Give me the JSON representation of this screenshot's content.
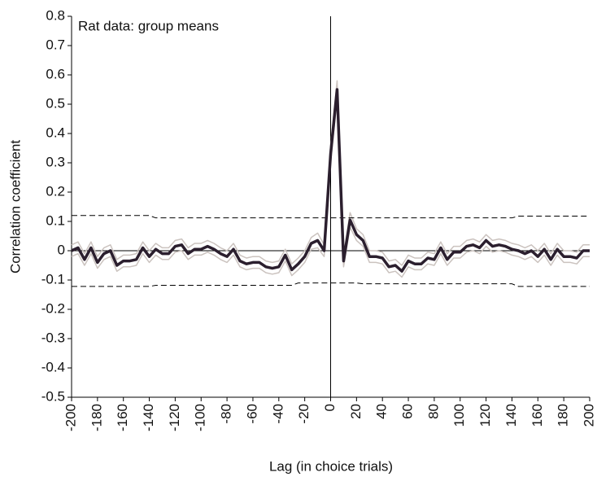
{
  "chart_data": {
    "type": "line",
    "annotation": "Rat data: group means",
    "xlabel": "Lag (in choice trials)",
    "ylabel": "Correlation coefficient",
    "xlim": [
      -200,
      200
    ],
    "ylim": [
      -0.5,
      0.8
    ],
    "xticks": [
      -200,
      -180,
      -160,
      -140,
      -120,
      -100,
      -80,
      -60,
      -40,
      -20,
      0,
      20,
      40,
      60,
      80,
      100,
      120,
      140,
      160,
      180,
      200
    ],
    "yticks": [
      0.8,
      0.7,
      0.6,
      0.5,
      0.4,
      0.3,
      0.2,
      0.1,
      0,
      -0.1,
      -0.2,
      -0.3,
      -0.4,
      -0.5
    ],
    "x": [
      -200,
      -195,
      -190,
      -185,
      -180,
      -175,
      -170,
      -165,
      -160,
      -155,
      -150,
      -145,
      -140,
      -135,
      -130,
      -125,
      -120,
      -115,
      -110,
      -105,
      -100,
      -95,
      -90,
      -85,
      -80,
      -75,
      -70,
      -65,
      -60,
      -55,
      -50,
      -45,
      -40,
      -35,
      -30,
      -25,
      -20,
      -15,
      -10,
      -5,
      0,
      5,
      10,
      15,
      20,
      25,
      30,
      35,
      40,
      45,
      50,
      55,
      60,
      65,
      70,
      75,
      80,
      85,
      90,
      95,
      100,
      105,
      110,
      115,
      120,
      125,
      130,
      135,
      140,
      145,
      150,
      155,
      160,
      165,
      170,
      175,
      180,
      185,
      190,
      195,
      200
    ],
    "series": [
      {
        "color": "#cbc3bf",
        "width": 1.5,
        "values": [
          0.02,
          0.03,
          -0.01,
          0.03,
          -0.02,
          0.01,
          0.02,
          -0.03,
          -0.015,
          -0.015,
          -0.01,
          0.03,
          0,
          0.025,
          0.01,
          0.01,
          0.035,
          0.04,
          0.01,
          0.025,
          0.025,
          0.035,
          0.025,
          0.01,
          0,
          0.025,
          -0.015,
          -0.025,
          -0.02,
          -0.02,
          -0.035,
          -0.04,
          -0.035,
          0.005,
          -0.045,
          -0.025,
          0,
          0.045,
          0.06,
          0.02,
          0.36,
          0.58,
          -0.015,
          0.13,
          0.075,
          0.055,
          0,
          0,
          -0.005,
          -0.035,
          -0.03,
          -0.05,
          -0.015,
          -0.025,
          -0.025,
          -0.005,
          -0.01,
          0.03,
          -0.01,
          0.015,
          0.015,
          0.035,
          0.04,
          0.03,
          0.055,
          0.035,
          0.04,
          0.035,
          0.025,
          0.02,
          0.01,
          0.02,
          0,
          0.025,
          -0.01,
          0.025,
          0,
          0,
          -0.005,
          0.02,
          0.02
        ]
      },
      {
        "color": "#cbc3bf",
        "width": 1.5,
        "values": [
          -0.02,
          -0.01,
          -0.05,
          -0.01,
          -0.06,
          -0.03,
          -0.02,
          -0.07,
          -0.055,
          -0.055,
          -0.05,
          -0.01,
          -0.04,
          -0.015,
          -0.03,
          -0.03,
          -0.005,
          0,
          -0.03,
          -0.015,
          -0.015,
          -0.005,
          -0.015,
          -0.03,
          -0.04,
          -0.015,
          -0.055,
          -0.065,
          -0.06,
          -0.06,
          -0.075,
          -0.08,
          -0.075,
          -0.035,
          -0.085,
          -0.065,
          -0.04,
          0.005,
          0.01,
          -0.02,
          0.3,
          0.52,
          -0.055,
          0.08,
          0.035,
          0.015,
          -0.04,
          -0.04,
          -0.045,
          -0.075,
          -0.07,
          -0.09,
          -0.055,
          -0.065,
          -0.065,
          -0.045,
          -0.05,
          -0.01,
          -0.05,
          -0.025,
          -0.025,
          -0.005,
          0,
          -0.01,
          0.015,
          -0.005,
          0,
          -0.005,
          -0.015,
          -0.02,
          -0.03,
          -0.02,
          -0.04,
          -0.015,
          -0.05,
          -0.015,
          -0.04,
          -0.04,
          -0.045,
          -0.02,
          -0.02
        ]
      },
      {
        "color": "#000000",
        "width": 1,
        "dashed": true,
        "x": [
          -200,
          -140,
          -135,
          140,
          145,
          200
        ],
        "values": [
          0.12,
          0.12,
          0.112,
          0.112,
          0.118,
          0.118
        ]
      },
      {
        "color": "#000000",
        "width": 1,
        "dashed": true,
        "x": [
          -200,
          -140,
          -135,
          -30,
          -25,
          20,
          25,
          140,
          145,
          200
        ],
        "values": [
          -0.122,
          -0.122,
          -0.118,
          -0.118,
          -0.11,
          -0.11,
          -0.113,
          -0.113,
          -0.122,
          -0.122
        ]
      },
      {
        "color": "#2b1f2e",
        "width": 3.5,
        "values": [
          0,
          0.01,
          -0.03,
          0.01,
          -0.04,
          -0.01,
          0,
          -0.05,
          -0.035,
          -0.035,
          -0.03,
          0.01,
          -0.02,
          0.005,
          -0.01,
          -0.01,
          0.015,
          0.02,
          -0.01,
          0.005,
          0.005,
          0.015,
          0.005,
          -0.01,
          -0.02,
          0.005,
          -0.035,
          -0.045,
          -0.04,
          -0.04,
          -0.055,
          -0.06,
          -0.055,
          -0.015,
          -0.065,
          -0.045,
          -0.02,
          0.025,
          0.035,
          0,
          0.33,
          0.55,
          -0.035,
          0.105,
          0.055,
          0.035,
          -0.02,
          -0.02,
          -0.025,
          -0.055,
          -0.05,
          -0.07,
          -0.035,
          -0.045,
          -0.045,
          -0.025,
          -0.03,
          0.01,
          -0.03,
          -0.005,
          -0.005,
          0.015,
          0.02,
          0.01,
          0.035,
          0.015,
          0.02,
          0.015,
          0.005,
          0,
          -0.01,
          0,
          -0.02,
          0.005,
          -0.03,
          0.005,
          -0.02,
          -0.02,
          -0.025,
          0,
          0
        ]
      }
    ]
  }
}
